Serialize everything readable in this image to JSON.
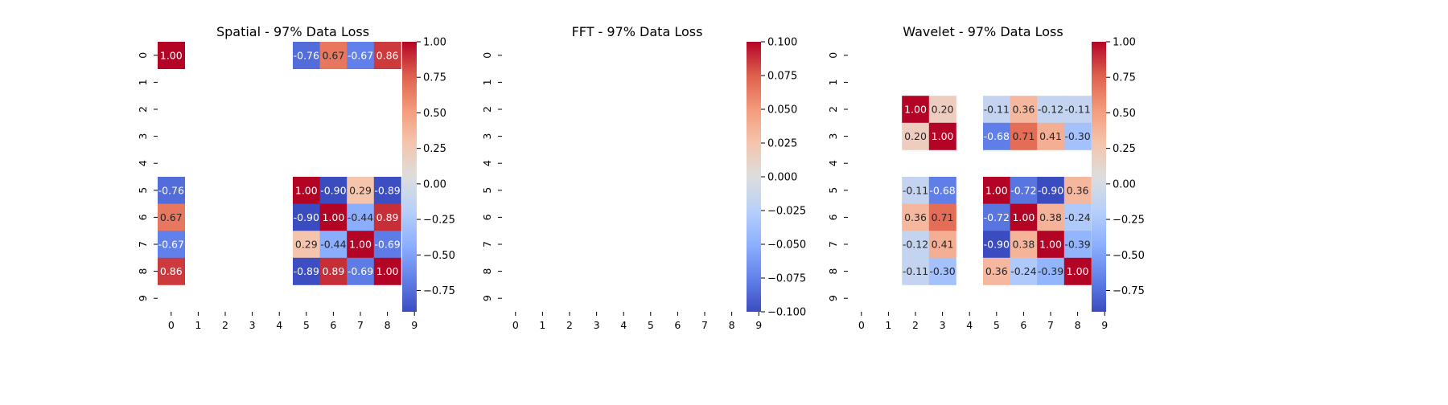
{
  "chart_data": [
    {
      "type": "heatmap",
      "title": "Spatial - 97% Data Loss",
      "x_ticks": [
        "0",
        "1",
        "2",
        "3",
        "4",
        "5",
        "6",
        "7",
        "8",
        "9"
      ],
      "y_ticks": [
        "0",
        "1",
        "2",
        "3",
        "4",
        "5",
        "6",
        "7",
        "8",
        "9"
      ],
      "colormap": "coolwarm",
      "vmin": -0.9,
      "vmax": 1.0,
      "colorbar_ticks": [
        -0.75,
        -0.5,
        -0.25,
        0.0,
        0.25,
        0.5,
        0.75,
        1.0
      ],
      "colorbar_labels": [
        "−0.75",
        "−0.50",
        "−0.25",
        "0.00",
        "0.25",
        "0.50",
        "0.75",
        "1.00"
      ],
      "matrix": [
        [
          1.0,
          null,
          null,
          null,
          null,
          -0.76,
          0.67,
          -0.67,
          0.86,
          null
        ],
        [
          null,
          null,
          null,
          null,
          null,
          null,
          null,
          null,
          null,
          null
        ],
        [
          null,
          null,
          null,
          null,
          null,
          null,
          null,
          null,
          null,
          null
        ],
        [
          null,
          null,
          null,
          null,
          null,
          null,
          null,
          null,
          null,
          null
        ],
        [
          null,
          null,
          null,
          null,
          null,
          null,
          null,
          null,
          null,
          null
        ],
        [
          -0.76,
          null,
          null,
          null,
          null,
          1.0,
          -0.9,
          0.29,
          -0.89,
          null
        ],
        [
          0.67,
          null,
          null,
          null,
          null,
          -0.9,
          1.0,
          -0.44,
          0.89,
          null
        ],
        [
          -0.67,
          null,
          null,
          null,
          null,
          0.29,
          -0.44,
          1.0,
          -0.69,
          null
        ],
        [
          0.86,
          null,
          null,
          null,
          null,
          -0.89,
          0.89,
          -0.69,
          1.0,
          null
        ],
        [
          null,
          null,
          null,
          null,
          null,
          null,
          null,
          null,
          null,
          null
        ]
      ]
    },
    {
      "type": "heatmap",
      "title": "FFT - 97% Data Loss",
      "x_ticks": [
        "0",
        "1",
        "2",
        "3",
        "4",
        "5",
        "6",
        "7",
        "8",
        "9"
      ],
      "y_ticks": [
        "0",
        "1",
        "2",
        "3",
        "4",
        "5",
        "6",
        "7",
        "8",
        "9"
      ],
      "colormap": "coolwarm",
      "vmin": -0.1,
      "vmax": 0.1,
      "colorbar_ticks": [
        -0.1,
        -0.075,
        -0.05,
        -0.025,
        0.0,
        0.025,
        0.05,
        0.075,
        0.1
      ],
      "colorbar_labels": [
        "−0.100",
        "−0.075",
        "−0.050",
        "−0.025",
        "0.000",
        "0.025",
        "0.050",
        "0.075",
        "0.100"
      ],
      "matrix": [
        [
          null,
          null,
          null,
          null,
          null,
          null,
          null,
          null,
          null,
          null
        ],
        [
          null,
          null,
          null,
          null,
          null,
          null,
          null,
          null,
          null,
          null
        ],
        [
          null,
          null,
          null,
          null,
          null,
          null,
          null,
          null,
          null,
          null
        ],
        [
          null,
          null,
          null,
          null,
          null,
          null,
          null,
          null,
          null,
          null
        ],
        [
          null,
          null,
          null,
          null,
          null,
          null,
          null,
          null,
          null,
          null
        ],
        [
          null,
          null,
          null,
          null,
          null,
          null,
          null,
          null,
          null,
          null
        ],
        [
          null,
          null,
          null,
          null,
          null,
          null,
          null,
          null,
          null,
          null
        ],
        [
          null,
          null,
          null,
          null,
          null,
          null,
          null,
          null,
          null,
          null
        ],
        [
          null,
          null,
          null,
          null,
          null,
          null,
          null,
          null,
          null,
          null
        ],
        [
          null,
          null,
          null,
          null,
          null,
          null,
          null,
          null,
          null,
          null
        ]
      ]
    },
    {
      "type": "heatmap",
      "title": "Wavelet - 97% Data Loss",
      "x_ticks": [
        "0",
        "1",
        "2",
        "3",
        "4",
        "5",
        "6",
        "7",
        "8",
        "9"
      ],
      "y_ticks": [
        "0",
        "1",
        "2",
        "3",
        "4",
        "5",
        "6",
        "7",
        "8",
        "9"
      ],
      "colormap": "coolwarm",
      "vmin": -0.9,
      "vmax": 1.0,
      "colorbar_ticks": [
        -0.75,
        -0.5,
        -0.25,
        0.0,
        0.25,
        0.5,
        0.75,
        1.0
      ],
      "colorbar_labels": [
        "−0.75",
        "−0.50",
        "−0.25",
        "0.00",
        "0.25",
        "0.50",
        "0.75",
        "1.00"
      ],
      "matrix": [
        [
          null,
          null,
          null,
          null,
          null,
          null,
          null,
          null,
          null,
          null
        ],
        [
          null,
          null,
          null,
          null,
          null,
          null,
          null,
          null,
          null,
          null
        ],
        [
          null,
          null,
          1.0,
          0.2,
          null,
          -0.11,
          0.36,
          -0.12,
          -0.11,
          null
        ],
        [
          null,
          null,
          0.2,
          1.0,
          null,
          -0.68,
          0.71,
          0.41,
          -0.3,
          null
        ],
        [
          null,
          null,
          null,
          null,
          null,
          null,
          null,
          null,
          null,
          null
        ],
        [
          null,
          null,
          -0.11,
          -0.68,
          null,
          1.0,
          -0.72,
          -0.9,
          0.36,
          null
        ],
        [
          null,
          null,
          0.36,
          0.71,
          null,
          -0.72,
          1.0,
          0.38,
          -0.24,
          null
        ],
        [
          null,
          null,
          -0.12,
          0.41,
          null,
          -0.9,
          0.38,
          1.0,
          -0.39,
          null
        ],
        [
          null,
          null,
          -0.11,
          -0.3,
          null,
          0.36,
          -0.24,
          -0.39,
          1.0,
          null
        ],
        [
          null,
          null,
          null,
          null,
          null,
          null,
          null,
          null,
          null,
          null
        ]
      ]
    }
  ]
}
